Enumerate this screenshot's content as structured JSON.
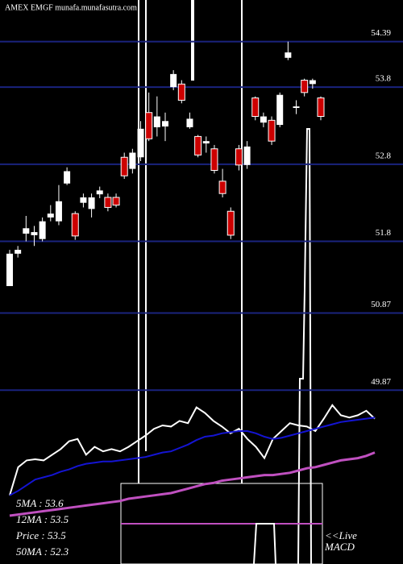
{
  "chart_data": [
    {
      "type": "candlestick",
      "title": "AMEX  EMGF munafa.munafasutra.com",
      "open": [
        51.22,
        51.64,
        51.9,
        51.88,
        51.83,
        52.11,
        52.06,
        52.55,
        52.16,
        52.3,
        52.22,
        52.41,
        52.37,
        52.37,
        52.89,
        52.74,
        52.89,
        53.47,
        53.28,
        53.29,
        53.8,
        53.84,
        53.28,
        53.16,
        53.07,
        53.0,
        52.58,
        52.19,
        53.0,
        52.79,
        53.66,
        53.34,
        53.37,
        53.31,
        54.18,
        53.53,
        53.89,
        53.84,
        53.66
      ],
      "high": [
        51.69,
        51.74,
        52.13,
        52.0,
        52.11,
        52.27,
        52.53,
        52.76,
        52.19,
        52.42,
        52.42,
        52.51,
        52.42,
        52.42,
        52.95,
        53.0,
        53.36,
        53.73,
        53.68,
        53.47,
        54.02,
        53.89,
        53.47,
        53.18,
        53.16,
        53.05,
        52.74,
        52.24,
        53.05,
        53.1,
        53.68,
        53.47,
        53.42,
        53.73,
        54.39,
        53.63,
        53.91,
        53.91,
        53.68
      ],
      "low": [
        51.22,
        51.59,
        51.8,
        51.74,
        51.8,
        52.06,
        52.01,
        52.53,
        51.82,
        52.24,
        52.11,
        52.36,
        52.19,
        52.24,
        52.61,
        52.68,
        52.84,
        53.1,
        53.16,
        53.1,
        53.76,
        53.59,
        53.26,
        52.89,
        52.95,
        52.68,
        52.37,
        51.83,
        52.72,
        52.74,
        53.37,
        53.28,
        53.05,
        53.28,
        54.15,
        53.45,
        53.68,
        53.78,
        53.37
      ],
      "close": [
        51.64,
        51.69,
        51.97,
        51.92,
        52.06,
        52.16,
        52.32,
        52.71,
        51.87,
        52.37,
        52.37,
        52.46,
        52.24,
        52.27,
        52.65,
        52.95,
        53.26,
        53.13,
        53.42,
        53.36,
        53.97,
        53.63,
        53.39,
        52.92,
        53.1,
        52.72,
        52.42,
        51.88,
        52.79,
        53.03,
        53.42,
        53.42,
        53.1,
        53.7,
        54.25,
        53.55,
        53.73,
        53.89,
        53.42
      ],
      "up_color": "#ffffff",
      "down_color": "#cc0000",
      "ylim": [
        49.81,
        54.93
      ],
      "yticks": [
        54.39,
        53.8,
        52.8,
        51.8,
        50.87,
        49.87
      ],
      "grid": true,
      "grid_color": "#1a237e"
    },
    {
      "type": "line",
      "series": [
        {
          "name": "Price",
          "color": "#ffffff",
          "values": [
            18,
            43,
            49,
            50,
            49,
            54,
            59,
            66,
            68,
            54,
            61,
            57,
            59,
            57,
            61,
            66,
            71,
            77,
            80,
            79,
            84,
            82,
            96,
            91,
            84,
            79,
            73,
            77,
            68,
            61,
            51,
            68,
            75,
            82,
            80,
            79,
            75,
            86,
            98,
            89,
            87,
            89,
            93,
            86
          ]
        },
        {
          "name": "5MA",
          "color": "#1414d2",
          "values": [
            18,
            22,
            27,
            32,
            34,
            36,
            39,
            41,
            44,
            46,
            47,
            48,
            48,
            49,
            50,
            51,
            52,
            54,
            56,
            57,
            60,
            63,
            67,
            70,
            71,
            73,
            74,
            75,
            75,
            73,
            70,
            68,
            69,
            71,
            73,
            75,
            77,
            79,
            81,
            83,
            84,
            85,
            86,
            87
          ]
        },
        {
          "name": "50MA",
          "color": "#c050c0",
          "values": [
            0,
            1,
            2,
            3,
            4,
            5,
            6,
            7,
            8,
            9,
            10,
            11,
            12,
            13,
            15,
            16,
            17,
            18,
            19,
            20,
            22,
            24,
            26,
            28,
            29,
            31,
            32,
            33,
            34,
            35,
            36,
            36,
            37,
            38,
            40,
            42,
            43,
            45,
            47,
            49,
            50,
            51,
            53,
            56
          ]
        }
      ],
      "ylim": [
        0,
        100
      ],
      "annotations": [
        "5MA : 53.6",
        "12MA : 53.5",
        "Price  : 53.5",
        "50MA : 52.3"
      ],
      "live_label": "<<Live",
      "macd_label": "MACD"
    }
  ]
}
